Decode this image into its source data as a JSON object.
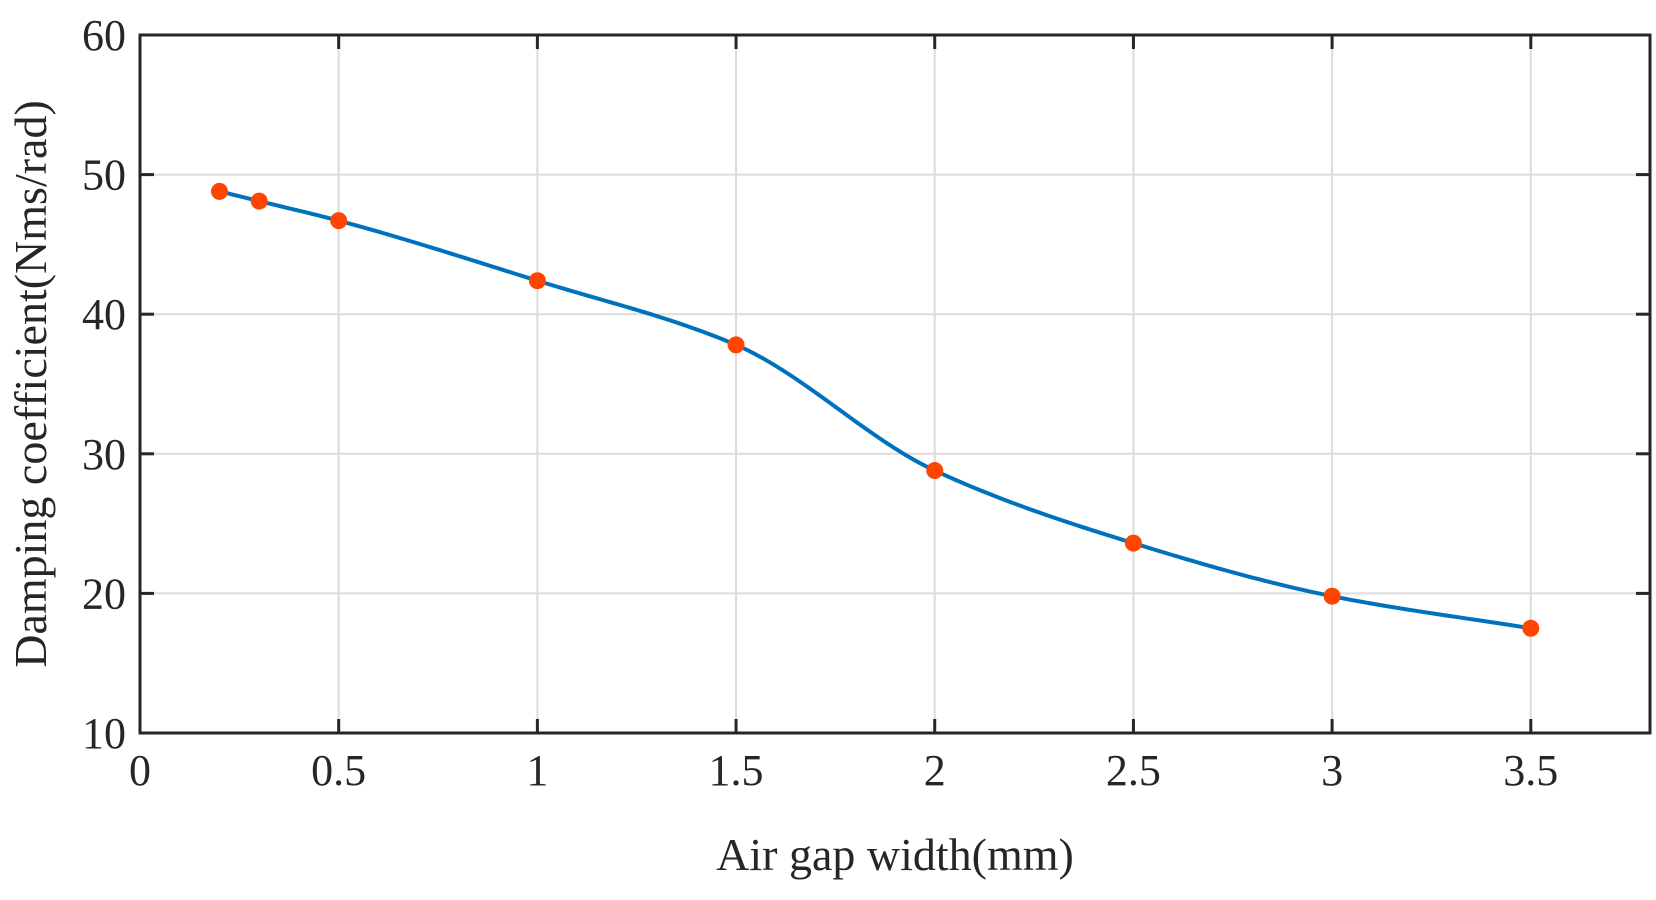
{
  "chart_data": {
    "type": "line",
    "title": "",
    "xlabel": "Air gap width(mm)",
    "ylabel": "Damping coefficient(Nms/rad)",
    "xlim": [
      0,
      3.8
    ],
    "ylim": [
      10,
      60
    ],
    "xticks": [
      0,
      0.5,
      1,
      1.5,
      2,
      2.5,
      3,
      3.5
    ],
    "xtick_labels": [
      "0",
      "0.5",
      "1",
      "1.5",
      "2",
      "2.5",
      "3",
      "3.5"
    ],
    "yticks": [
      10,
      20,
      30,
      40,
      50,
      60
    ],
    "ytick_labels": [
      "10",
      "20",
      "30",
      "40",
      "50",
      "60"
    ],
    "grid": true,
    "legend": "none",
    "series": [
      {
        "style": "smooth line with markers",
        "line_color": "#0072BD",
        "marker_color": "#FF4500",
        "x": [
          0.2,
          0.3,
          0.5,
          1.0,
          1.5,
          2.0,
          2.5,
          3.0,
          3.5
        ],
        "y": [
          48.8,
          48.1,
          46.7,
          42.4,
          37.8,
          28.8,
          23.6,
          19.8,
          17.5
        ]
      }
    ]
  }
}
